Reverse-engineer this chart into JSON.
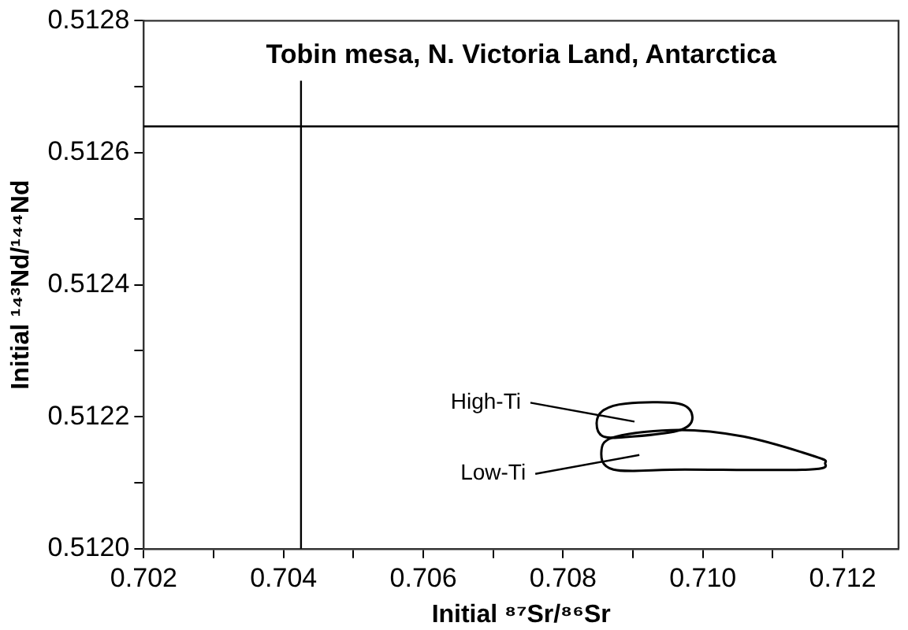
{
  "chart_data": {
    "type": "line",
    "title": "Tobin mesa, N. Victoria Land, Antarctica",
    "xlabel": "Initial ⁸⁷Sr/⁸⁶Sr",
    "ylabel": "Initial ¹⁴³Nd/¹⁴⁴Nd",
    "xlim": [
      0.702,
      0.7128
    ],
    "ylim": [
      0.512,
      0.5128
    ],
    "xticks": [
      0.702,
      {
        "value": 0.703,
        "label": null
      },
      0.704,
      {
        "value": 0.705,
        "label": null
      },
      0.706,
      {
        "value": 0.707,
        "label": null
      },
      0.708,
      {
        "value": 0.709,
        "label": null
      },
      {
        "value": 0.71,
        "label": "0.710"
      },
      {
        "value": 0.711,
        "label": null
      },
      0.712
    ],
    "yticks": [
      {
        "value": 0.512,
        "label": "0.5120"
      },
      {
        "value": 0.5121,
        "label": null
      },
      0.5122,
      {
        "value": 0.5123,
        "label": null
      },
      0.5124,
      {
        "value": 0.5125,
        "label": null
      },
      0.5126,
      {
        "value": 0.5127,
        "label": null
      },
      0.5128
    ],
    "grid": false,
    "ref_lines": [
      {
        "axis": "x",
        "value": 0.70425,
        "color": "#000000"
      },
      {
        "axis": "y",
        "value": 0.51264,
        "color": "#000000"
      }
    ],
    "annotations": [
      "High-Ti",
      "Low-Ti"
    ]
  }
}
